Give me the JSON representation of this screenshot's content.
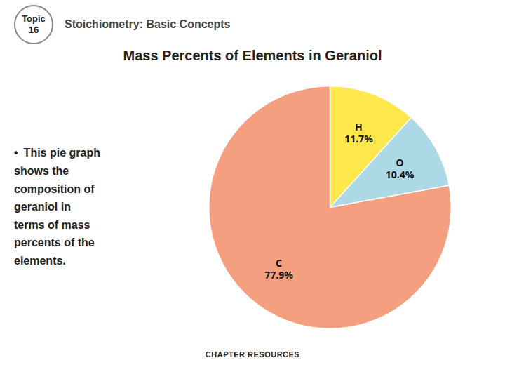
{
  "chart_data": {
    "type": "pie",
    "title": "Mass Percents of Elements in Geraniol",
    "subtitle": "Stoichiometry: Basic Concepts",
    "annotations": [
      "Topic\n16",
      "This pie graph\nshows the\ncomposition of\ngeraniol in\nterms of mass\npercents of the\nelements.",
      "CHAPTER RESOURCES"
    ],
    "categories": [
      "H",
      "O",
      "C"
    ],
    "values": [
      11.7,
      10.4,
      77.9
    ],
    "value_labels": [
      "11.7%",
      "10.4%",
      "77.9%"
    ],
    "colors": [
      "#FFE84B",
      "#ADD8E6",
      "#F4A080"
    ],
    "data_labels": true
  }
}
